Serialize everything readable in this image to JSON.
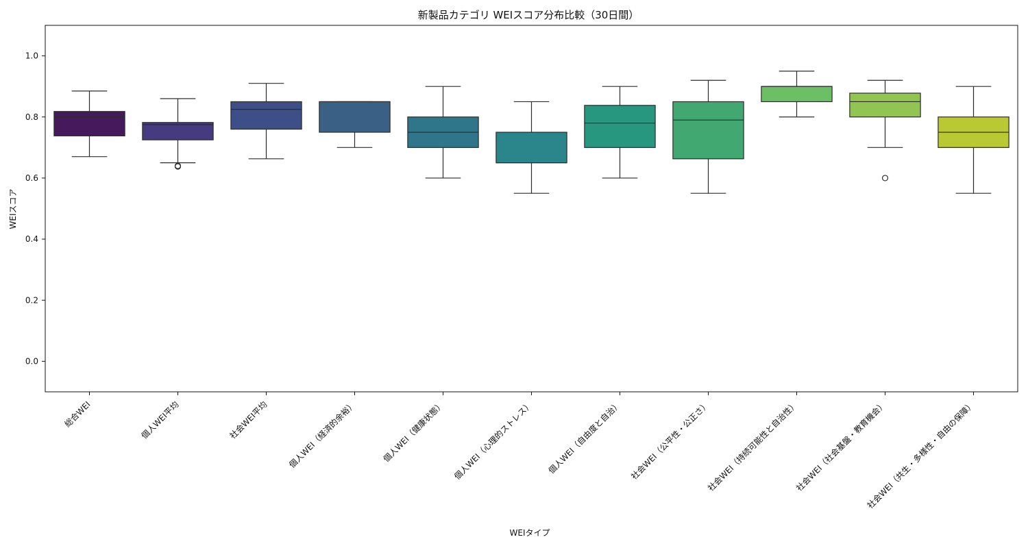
{
  "chart_data": {
    "type": "box",
    "title": "新製品カテゴリ WEIスコア分布比較（30日間）",
    "xlabel": "WEIタイプ",
    "ylabel": "WEIスコア",
    "ylim": [
      -0.1,
      1.1
    ],
    "yticks": [
      "0.0",
      "0.2",
      "0.4",
      "0.6",
      "0.8",
      "1.0"
    ],
    "grid": false,
    "categories": [
      "総合WEI",
      "個人WEI平均",
      "社会WEI平均",
      "個人WEI（経済的余裕）",
      "個人WEI（健康状態）",
      "個人WEI（心理的ストレス）",
      "個人WEI（自由度と自治）",
      "社会WEI（公平性・公正さ）",
      "社会WEI（持続可能性と自治性）",
      "社会WEI（社会基盤・教育機会）",
      "社会WEI（共生・多様性・自由の保障）"
    ],
    "boxes": [
      {
        "whisker_low": 0.67,
        "q1": 0.738,
        "median": 0.8,
        "q3": 0.818,
        "whisker_high": 0.885,
        "outliers": [],
        "color": "#46195c"
      },
      {
        "whisker_low": 0.65,
        "q1": 0.725,
        "median": 0.775,
        "q3": 0.782,
        "whisker_high": 0.86,
        "outliers": [
          0.638,
          0.64
        ],
        "color": "#463a80"
      },
      {
        "whisker_low": 0.663,
        "q1": 0.76,
        "median": 0.825,
        "q3": 0.85,
        "whisker_high": 0.91,
        "outliers": [],
        "color": "#3e4f88"
      },
      {
        "whisker_low": 0.7,
        "q1": 0.75,
        "median": 0.85,
        "q3": 0.85,
        "whisker_high": 0.85,
        "outliers": [],
        "color": "#3a6185"
      },
      {
        "whisker_low": 0.6,
        "q1": 0.7,
        "median": 0.75,
        "q3": 0.8,
        "whisker_high": 0.9,
        "outliers": [],
        "color": "#30768b"
      },
      {
        "whisker_low": 0.55,
        "q1": 0.65,
        "median": 0.65,
        "q3": 0.75,
        "whisker_high": 0.85,
        "outliers": [],
        "color": "#2a868b"
      },
      {
        "whisker_low": 0.6,
        "q1": 0.7,
        "median": 0.78,
        "q3": 0.838,
        "whisker_high": 0.9,
        "outliers": [],
        "color": "#27987f"
      },
      {
        "whisker_low": 0.55,
        "q1": 0.663,
        "median": 0.79,
        "q3": 0.85,
        "whisker_high": 0.92,
        "outliers": [],
        "color": "#42a872"
      },
      {
        "whisker_low": 0.8,
        "q1": 0.85,
        "median": 0.9,
        "q3": 0.9,
        "whisker_high": 0.95,
        "outliers": [],
        "color": "#6cbf64"
      },
      {
        "whisker_low": 0.7,
        "q1": 0.8,
        "median": 0.85,
        "q3": 0.878,
        "whisker_high": 0.92,
        "outliers": [
          0.6
        ],
        "color": "#92c451"
      },
      {
        "whisker_low": 0.55,
        "q1": 0.7,
        "median": 0.75,
        "q3": 0.8,
        "whisker_high": 0.9,
        "outliers": [],
        "color": "#b9c934"
      }
    ]
  }
}
